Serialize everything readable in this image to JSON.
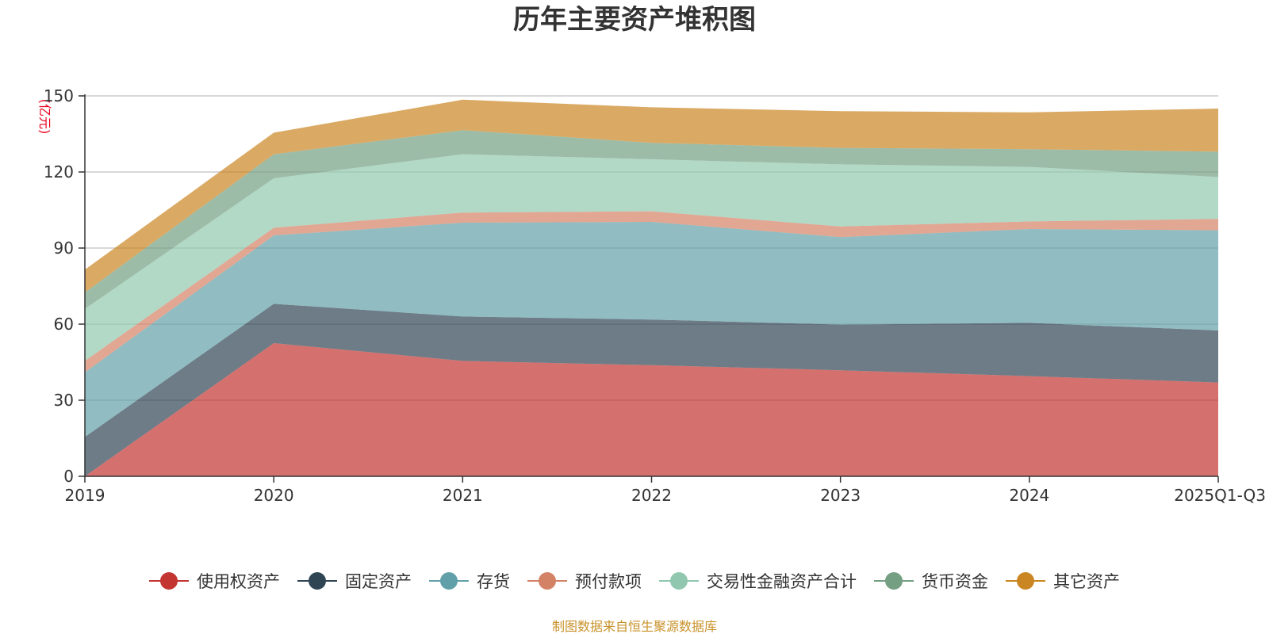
{
  "chart_data": {
    "type": "area",
    "stacked": true,
    "title": "历年主要资产堆积图",
    "unit_label": "(亿元)",
    "source": "制图数据来自恒生聚源数据库",
    "categories": [
      "2019",
      "2020",
      "2021",
      "2022",
      "2023",
      "2024",
      "2025Q1-Q3"
    ],
    "ylim": [
      0,
      150
    ],
    "yticks": [
      0,
      30,
      60,
      90,
      120,
      150
    ],
    "grid": true,
    "legend_position": "bottom",
    "series": [
      {
        "name": "使用权资产",
        "color": "#c23531",
        "values": [
          0,
          52.5,
          45.5,
          43.8,
          41.8,
          39.5,
          37
        ]
      },
      {
        "name": "固定资产",
        "color": "#2f4554",
        "values": [
          15.5,
          15.5,
          17.5,
          18,
          18,
          21,
          20.5
        ]
      },
      {
        "name": "存货",
        "color": "#61a0a8",
        "values": [
          25.5,
          27,
          37,
          38.5,
          34.5,
          37,
          39.5
        ]
      },
      {
        "name": "预付款项",
        "color": "#d48265",
        "values": [
          4.5,
          3,
          4,
          4.2,
          4.2,
          3,
          4.5
        ]
      },
      {
        "name": "交易性金融资产合计",
        "color": "#91c7ae",
        "values": [
          20.5,
          19.5,
          23,
          20.5,
          24.5,
          21.5,
          16.5
        ]
      },
      {
        "name": "货币资金",
        "color": "#749f83",
        "values": [
          6.5,
          9.5,
          9.5,
          6.5,
          6.5,
          7,
          10
        ]
      },
      {
        "name": "其它资产",
        "color": "#ca8622",
        "values": [
          9,
          8.5,
          12,
          14,
          14.5,
          14.5,
          17
        ]
      }
    ]
  }
}
